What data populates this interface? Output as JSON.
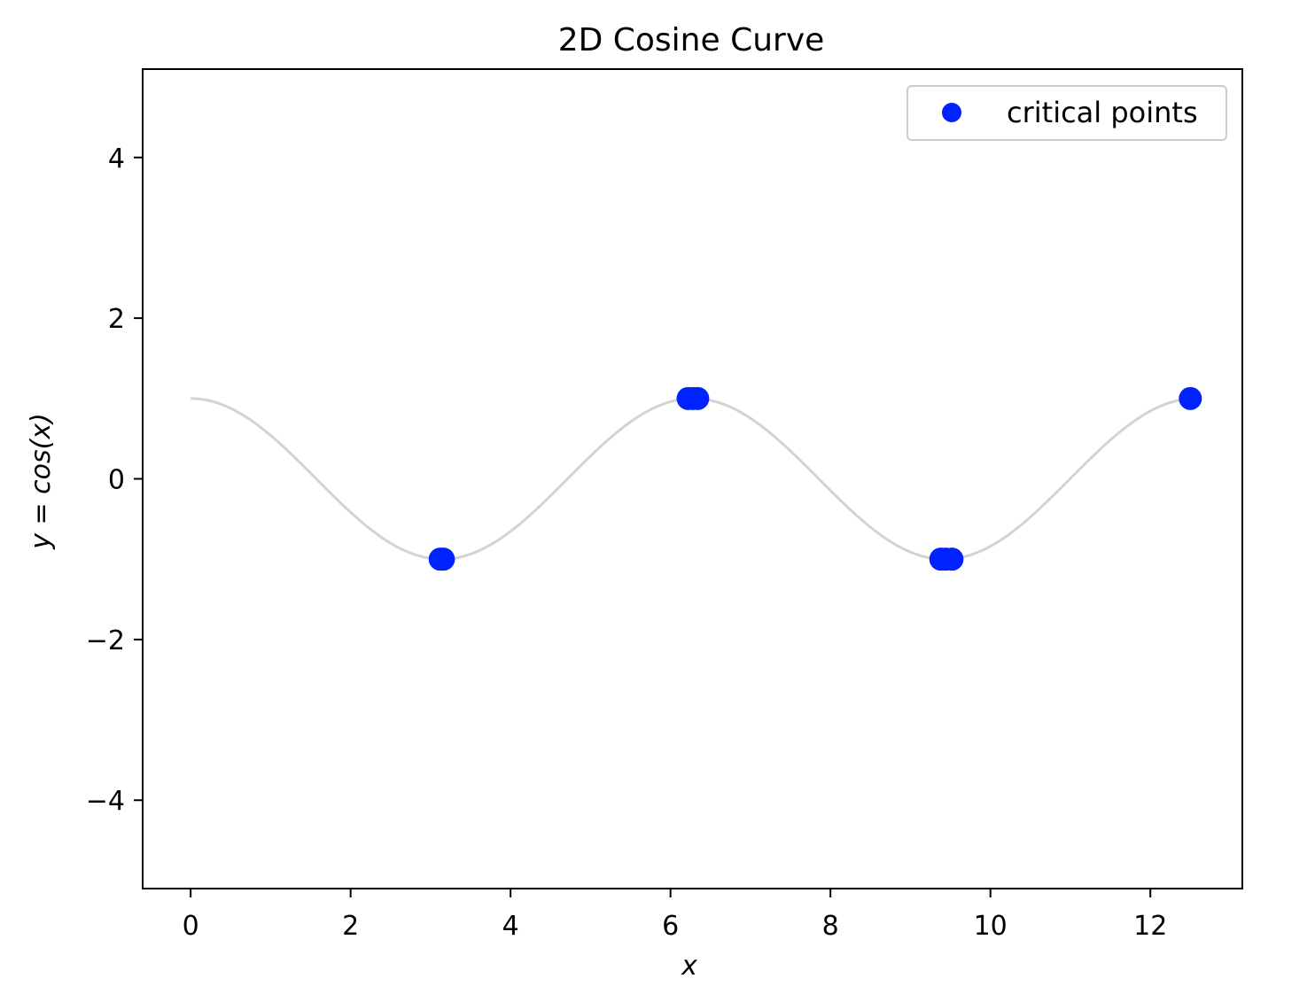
{
  "chart_data": {
    "type": "line",
    "title": "2D Cosine Curve",
    "xlabel": "x",
    "ylabel": "y = cos(x)",
    "xlim": [
      -0.6,
      13.15
    ],
    "ylim": [
      -5.1,
      5.1
    ],
    "xticks": [
      0,
      2,
      4,
      6,
      8,
      10,
      12
    ],
    "yticks": [
      -4,
      -2,
      0,
      2,
      4
    ],
    "xtick_labels": [
      "0",
      "2",
      "4",
      "6",
      "8",
      "10",
      "12"
    ],
    "ytick_labels": [
      "−4",
      "−2",
      "0",
      "2",
      "4"
    ],
    "grid": false,
    "legend_position": "top-right",
    "curve": {
      "function": "cos",
      "x_start": 0,
      "x_end": 12.5,
      "color": "#d3d3d3"
    },
    "series": [
      {
        "name": "critical points",
        "type": "scatter",
        "color": "#0022ff",
        "points": [
          {
            "x": 3.12,
            "y": -1
          },
          {
            "x": 3.16,
            "y": -1
          },
          {
            "x": 6.22,
            "y": 1
          },
          {
            "x": 6.28,
            "y": 1
          },
          {
            "x": 6.34,
            "y": 1
          },
          {
            "x": 9.38,
            "y": -1
          },
          {
            "x": 9.44,
            "y": -1
          },
          {
            "x": 9.52,
            "y": -1
          },
          {
            "x": 12.5,
            "y": 1
          }
        ]
      }
    ]
  }
}
